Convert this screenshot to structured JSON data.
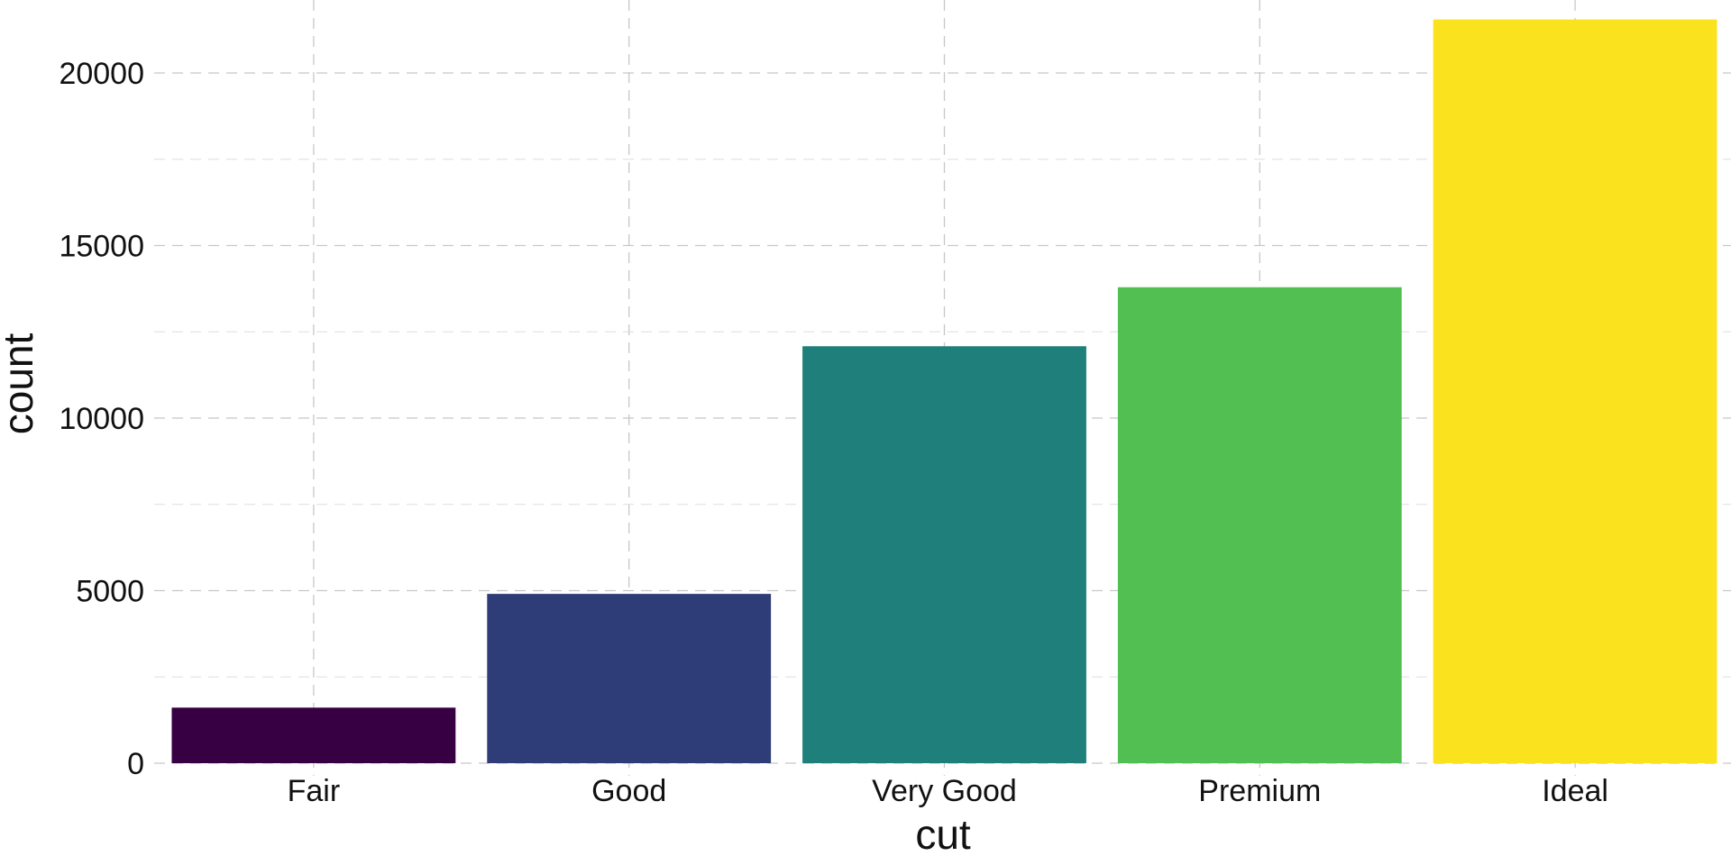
{
  "chart_data": {
    "type": "bar",
    "categories": [
      "Fair",
      "Good",
      "Very Good",
      "Premium",
      "Ideal"
    ],
    "values": [
      1610,
      4906,
      12082,
      13791,
      21551
    ],
    "colors": [
      "#360043",
      "#2e3d77",
      "#1f7f7a",
      "#51bf51",
      "#fae31e"
    ],
    "xlabel": "cut",
    "ylabel": "count",
    "ylim": [
      0,
      22600
    ],
    "yticks": [
      0,
      5000,
      10000,
      15000,
      20000
    ],
    "ytick_labels": [
      "0",
      "5000",
      "10000",
      "15000",
      "20000"
    ],
    "grid": true,
    "legend": "none"
  }
}
